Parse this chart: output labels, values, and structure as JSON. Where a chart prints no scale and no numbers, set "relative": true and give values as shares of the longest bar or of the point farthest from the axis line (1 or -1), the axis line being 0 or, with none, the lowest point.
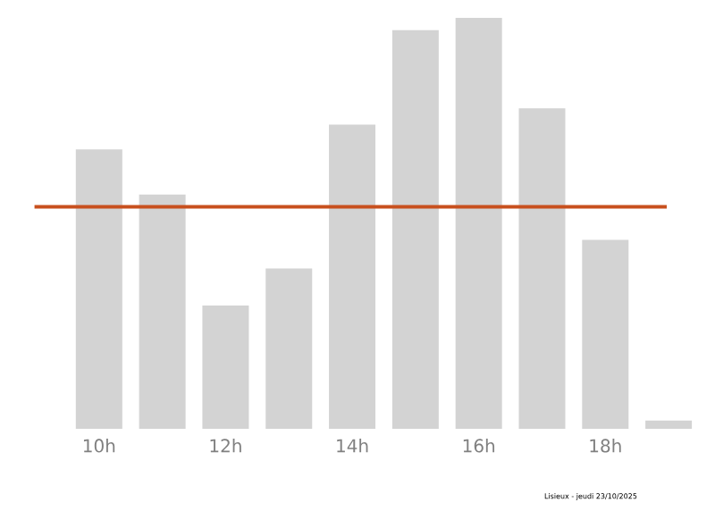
{
  "chart_data": {
    "type": "bar",
    "relative": true,
    "categories": [
      "10h",
      null,
      "12h",
      null,
      "14h",
      null,
      "16h",
      null,
      "18h",
      null
    ],
    "values": [
      0.68,
      0.57,
      0.3,
      0.39,
      0.74,
      0.97,
      1,
      0.78,
      0.46,
      0.02
    ],
    "color": "#d3d3d3",
    "ref_lines": [
      {
        "axis": "y",
        "value": 0.54,
        "color": "#c8501e"
      }
    ],
    "annotations": [
      "Lisieux - jeudi 23/10/2025"
    ]
  }
}
